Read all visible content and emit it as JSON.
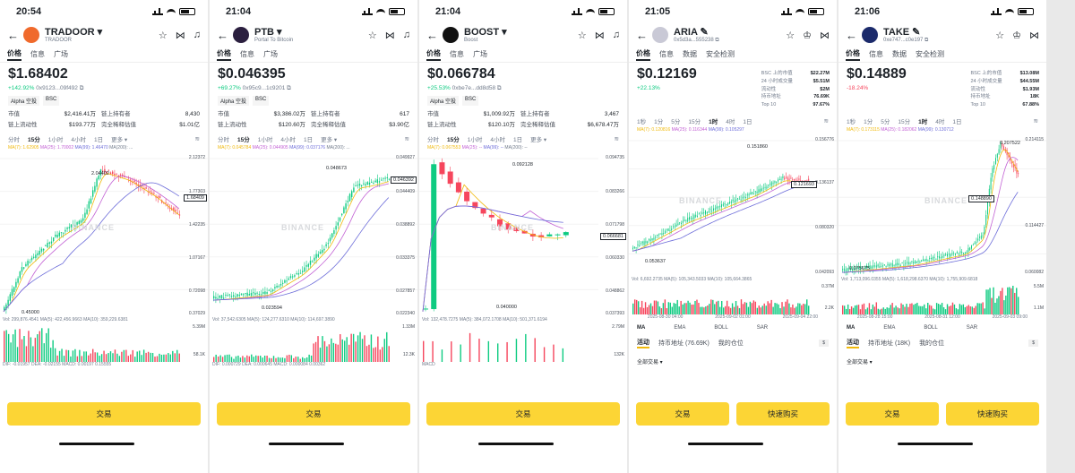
{
  "colors": {
    "up": "#0ecb81",
    "down": "#f6465d",
    "accent": "#fcd535"
  },
  "common": {
    "tabs": [
      "价格",
      "信息",
      "广场"
    ],
    "tabs_bsc": [
      "价格",
      "信息",
      "数据",
      "安全检测"
    ],
    "watermark": "BINANCE",
    "trade": "交易",
    "quick_buy": "快速购买",
    "alpha": "Alpha 空投",
    "bsc": "BSC",
    "tf_a": [
      "分时",
      "15分",
      "1小时",
      "4小时",
      "1日",
      "更多 ▾"
    ],
    "tf_b": [
      "1秒",
      "1分",
      "5分",
      "15分",
      "1时",
      "4时",
      "1日"
    ],
    "ind": [
      "MA",
      "EMA",
      "BOLL",
      "SAR"
    ],
    "act_tabs": [
      "活动",
      "持币地址",
      "我的仓位"
    ],
    "all_trades": "全部交易 ▾",
    "lbl_mcap": "市值",
    "lbl_holders": "链上持有者",
    "lbl_liq": "链上流动性",
    "lbl_fdv": "完全稀释估值",
    "s_lbl": [
      "BSC 上的市值",
      "24 小时成交量",
      "流动性",
      "持币地址",
      "Top 10"
    ]
  },
  "p1": {
    "time": "20:54",
    "symbol": "TRADOOR ▾",
    "sub": "TRADOOR",
    "price": "$1.68402",
    "change": "+142.92%",
    "addr": "0x9123...09f492 ⧉",
    "mcap": "$2,416.41万",
    "holders": "8,430",
    "liq": "$193.77万",
    "fdv": "$1.01亿",
    "ma": [
      "MA(7): 1.62905",
      "MA(25): 1.70002",
      "MA(99): 1.46470",
      "MA(200): ..."
    ],
    "yl": [
      "2.12372",
      "1.77303",
      "1.42235",
      "1.07167",
      "0.72098",
      "0.37029"
    ],
    "hi": "2.04402",
    "lo": "0.45000",
    "tag": "1.68409",
    "vol": "Vol: 299,876.4541  MA(5): 422,456.9663  MA(10): 359,229.6381",
    "vyl": [
      "5.39M",
      "58.1K"
    ],
    "macd": "DIF: -0.01957  DEA: -0.02155  MACD: 0.00197  0.15555"
  },
  "p2": {
    "time": "21:04",
    "symbol": "PTB ▾",
    "sub": "Portal To Bitcoin",
    "price": "$0.046395",
    "change": "+69.27%",
    "addr": "0x95c9...1c9201 ⧉",
    "mcap": "$3,386.02万",
    "holders": "617",
    "liq": "$120.60万",
    "fdv": "$3.90亿",
    "ma": [
      "MA(7): 0.045784",
      "MA(25): 0.044905",
      "MA(99): 0.037176",
      "MA(200): ..."
    ],
    "yl": [
      "0.049927",
      "0.044409",
      "0.038892",
      "0.033375",
      "0.027857",
      "0.022340"
    ],
    "hi": "0.048673",
    "lo": "0.023594",
    "tag": "0.046392",
    "vol": "Vol: 37,542.6305  MA(5): 124,277.6310  MA(10): 114,697.3890",
    "vyl": [
      "1.33M",
      "12.3K"
    ],
    "macd": "DIF: 0.000729  DEA: 0.000645  MACD: 0.000084  0.00362"
  },
  "p3": {
    "time": "21:04",
    "symbol": "BOOST ▾",
    "sub": "Boost",
    "price": "$0.066784",
    "change": "+25.53%",
    "addr": "0xbe7e...dd8d58 ⧉",
    "mcap": "$1,009.92万",
    "holders": "3,467",
    "liq": "$120.10万",
    "fdv": "$6,678.47万",
    "ma": [
      "MA(7): 0.067553",
      "MA(25): --",
      "MA(99): --",
      "MA(200): --"
    ],
    "yl": [
      "0.094735",
      "0.083266",
      "0.071798",
      "0.060330",
      "0.048862",
      "0.037393"
    ],
    "hi": "0.092128",
    "lo": "0.040000",
    "tag": "0.066681",
    "vol": "Vol: 132,478.7275  MA(5): 384,072.1708  MA(10): 501,371.6194",
    "vyl": [
      "2.79M",
      "132K"
    ],
    "macd": "MACD"
  },
  "p4": {
    "time": "21:05",
    "symbol": "ARIA ✎",
    "addr": "0x5d3a...555238 ⧉",
    "price": "$0.12169",
    "change": "+22.13%",
    "stats": [
      "$22.27M",
      "$5.51M",
      "$2M",
      "76.69K",
      "97.67%"
    ],
    "ma": [
      "MA(7): 0.120816",
      "MA(25): 0.116344",
      "MA(99): 0.105297"
    ],
    "yl": [
      "0.156776",
      "0.136137",
      "0.080320",
      "0.042093"
    ],
    "hi": "0.151860",
    "lo": "0.053637",
    "tag": "0.121693",
    "vol": "Vol: 6,692.2735  MA(5): 105,343.5033  MA(10): 105,664.3865",
    "vyl": [
      "0.37M",
      "2.2K"
    ],
    "dates": [
      "2025-08-30 04:00",
      "2025-09-02 01:00",
      "2025-09-04 22:00"
    ],
    "holders_tab": "持币地址 (76.69K)"
  },
  "p5": {
    "time": "21:06",
    "symbol": "TAKE ✎",
    "addr": "0xe747...c0e197 ⧉",
    "price": "$0.14889",
    "change": "-18.24%",
    "stats": [
      "$13.08M",
      "$44.55M",
      "$1.93M",
      "18K",
      "67.88%"
    ],
    "ma": [
      "MA(7): 0.173115",
      "MA(25): 0.182062",
      "MA(99): 0.130712"
    ],
    "yl": [
      "0.214115",
      "0.114427",
      "0.060082"
    ],
    "hi": "0.207522",
    "lo": "0.075675",
    "tag": "0.148890",
    "vol": "Vol: 1,713,096.0355  MA(5): 1,618,298.6370  MA(10): 1,755,909.6818",
    "vyl": [
      "5.5M",
      "1.1M"
    ],
    "dates": [
      "2025-08-28 15:00",
      "2025-08-31 12:00",
      "2025-09-03 09:00"
    ],
    "holders_tab": "持币地址 (18K)"
  }
}
